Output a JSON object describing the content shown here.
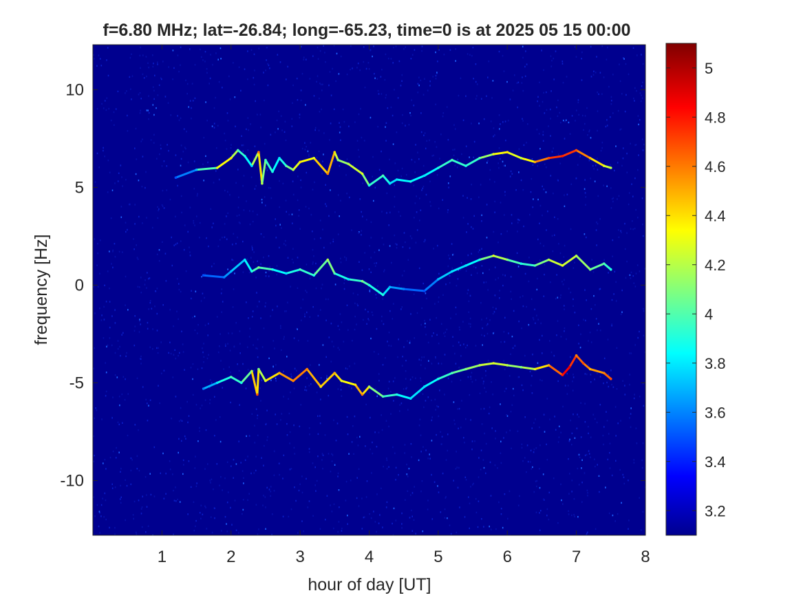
{
  "chart_data": {
    "type": "heatmap",
    "title": "f=6.80 MHz;  lat=-26.84; long=-65.23, time=0 is at 2025 05 15 00:00",
    "xlabel": "hour of day [UT]",
    "ylabel": "frequency [Hz]",
    "xlim": [
      0,
      8
    ],
    "ylim": [
      -12.8,
      12.3
    ],
    "x_ticks": [
      1,
      2,
      3,
      4,
      5,
      6,
      7,
      8
    ],
    "y_ticks": [
      -10,
      -5,
      0,
      5,
      10
    ],
    "colorbar": {
      "colormap": "jet",
      "clim": [
        3.1,
        5.1
      ],
      "ticks": [
        3.2,
        3.4,
        3.6,
        3.8,
        4,
        4.2,
        4.4,
        4.6,
        4.8,
        5
      ]
    },
    "background_color": "#00008F",
    "series": [
      {
        "hours": [
          1.2,
          1.5,
          1.8,
          2.0,
          2.1,
          2.2,
          2.3,
          2.4,
          2.45,
          2.5,
          2.6,
          2.7,
          2.8,
          2.9,
          3.0,
          3.2,
          3.4,
          3.5,
          3.55,
          3.7,
          3.9,
          4.0,
          4.2,
          4.3,
          4.4,
          4.6,
          4.8,
          5.0,
          5.2,
          5.4,
          5.6,
          5.8,
          6.0,
          6.2,
          6.4,
          6.6,
          6.8,
          7.0,
          7.2,
          7.4,
          7.5
        ],
        "freq_hz": [
          5.5,
          5.9,
          6.0,
          6.5,
          6.9,
          6.6,
          6.1,
          6.8,
          5.2,
          6.4,
          5.8,
          6.5,
          6.1,
          5.9,
          6.3,
          6.5,
          5.7,
          6.8,
          6.4,
          6.2,
          5.7,
          5.1,
          5.6,
          5.2,
          5.4,
          5.3,
          5.6,
          6.0,
          6.4,
          6.1,
          6.5,
          6.7,
          6.8,
          6.5,
          6.3,
          6.5,
          6.6,
          6.9,
          6.5,
          6.1,
          6.0
        ],
        "intensity": [
          3.5,
          3.7,
          4.3,
          4.4,
          4.0,
          3.9,
          3.8,
          4.6,
          4.2,
          4.0,
          3.9,
          3.8,
          4.0,
          4.2,
          4.4,
          4.3,
          4.6,
          4.4,
          4.1,
          4.2,
          4.3,
          3.9,
          4.0,
          3.8,
          3.8,
          3.9,
          3.8,
          3.9,
          4.0,
          3.9,
          4.0,
          4.3,
          4.4,
          4.2,
          4.5,
          4.7,
          4.8,
          4.7,
          4.5,
          4.3,
          4.2
        ]
      },
      {
        "hours": [
          1.6,
          1.9,
          2.0,
          2.2,
          2.3,
          2.4,
          2.6,
          2.8,
          3.0,
          3.2,
          3.4,
          3.5,
          3.7,
          3.9,
          4.0,
          4.2,
          4.3,
          4.5,
          4.8,
          5.0,
          5.2,
          5.4,
          5.6,
          5.8,
          6.0,
          6.2,
          6.4,
          6.6,
          6.8,
          7.0,
          7.2,
          7.4,
          7.5
        ],
        "freq_hz": [
          0.5,
          0.4,
          0.7,
          1.3,
          0.7,
          0.9,
          0.8,
          0.6,
          0.8,
          0.5,
          1.3,
          0.6,
          0.3,
          0.2,
          0.0,
          -0.5,
          -0.1,
          -0.2,
          -0.3,
          0.3,
          0.7,
          1.0,
          1.3,
          1.5,
          1.3,
          1.1,
          1.0,
          1.3,
          1.0,
          1.5,
          0.8,
          1.1,
          0.8
        ],
        "intensity": [
          3.5,
          3.6,
          3.7,
          3.8,
          3.9,
          4.1,
          3.9,
          3.8,
          4.0,
          3.9,
          4.2,
          4.0,
          3.8,
          4.1,
          3.9,
          3.9,
          3.7,
          3.6,
          3.5,
          3.7,
          3.8,
          3.8,
          3.9,
          4.3,
          4.1,
          3.9,
          4.0,
          4.2,
          4.3,
          4.2,
          4.1,
          4.0,
          3.9
        ]
      },
      {
        "hours": [
          1.6,
          1.8,
          2.0,
          2.15,
          2.3,
          2.38,
          2.4,
          2.5,
          2.7,
          2.9,
          3.1,
          3.3,
          3.5,
          3.6,
          3.8,
          3.9,
          4.0,
          4.2,
          4.4,
          4.6,
          4.8,
          5.0,
          5.2,
          5.4,
          5.6,
          5.8,
          6.0,
          6.2,
          6.4,
          6.6,
          6.8,
          6.9,
          7.0,
          7.1,
          7.2,
          7.4,
          7.5
        ],
        "freq_hz": [
          -5.3,
          -5.0,
          -4.7,
          -5.0,
          -4.4,
          -5.6,
          -4.3,
          -4.9,
          -4.5,
          -4.9,
          -4.3,
          -5.2,
          -4.5,
          -4.9,
          -5.1,
          -5.6,
          -5.2,
          -5.7,
          -5.6,
          -5.8,
          -5.2,
          -4.8,
          -4.5,
          -4.3,
          -4.1,
          -4.0,
          -4.1,
          -4.2,
          -4.3,
          -4.1,
          -4.6,
          -4.2,
          -3.6,
          -4.0,
          -4.3,
          -4.5,
          -4.8
        ],
        "intensity": [
          3.6,
          3.8,
          4.0,
          3.9,
          4.2,
          4.7,
          4.1,
          4.3,
          4.5,
          4.6,
          4.6,
          4.4,
          4.5,
          4.3,
          4.4,
          4.6,
          4.2,
          4.0,
          3.9,
          3.8,
          3.8,
          3.9,
          4.0,
          4.1,
          4.2,
          4.3,
          4.2,
          4.1,
          4.3,
          4.5,
          4.8,
          4.9,
          4.6,
          4.7,
          4.5,
          4.6,
          4.7
        ]
      }
    ]
  }
}
